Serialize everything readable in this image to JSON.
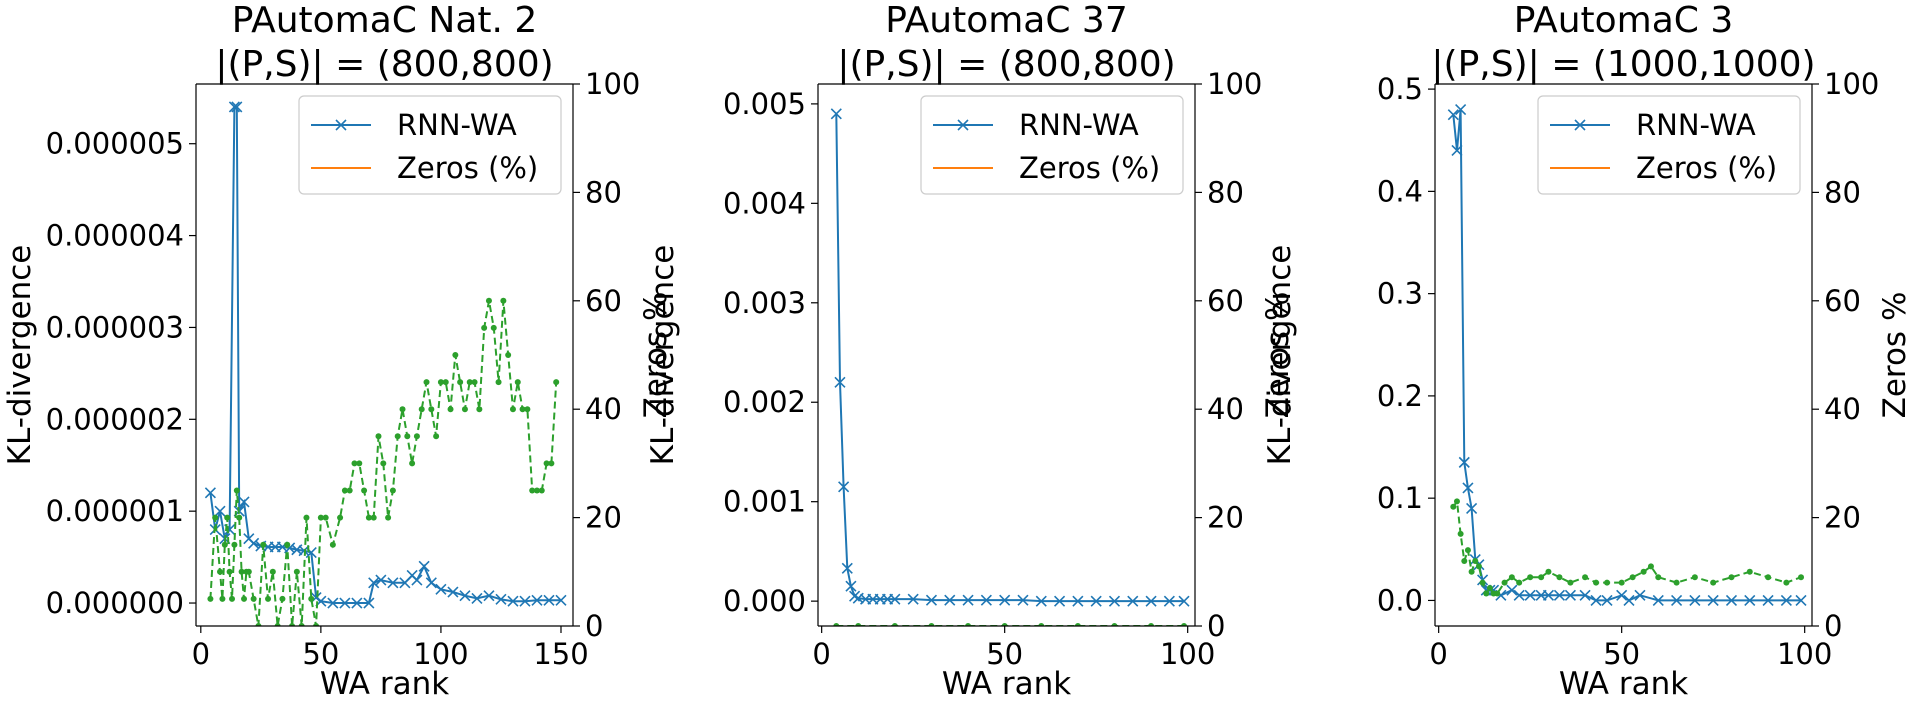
{
  "chart_data": [
    {
      "type": "line",
      "title": "PAutomaC Nat. 2",
      "subtitle": "|(P,S)| = (800,800)",
      "xlabel": "WA rank",
      "ylabel": "KL-divergence",
      "y2label": "Zeros %",
      "xlim": [
        -2,
        155
      ],
      "ylim": [
        -2.5e-07,
        5.65e-06
      ],
      "y2lim": [
        0,
        100
      ],
      "xticks": [
        0,
        50,
        100,
        150
      ],
      "yticks": [
        0.0,
        1e-06,
        2e-06,
        3e-06,
        4e-06,
        5e-06
      ],
      "ytick_labels": [
        "0.000000",
        "0.000001",
        "0.000002",
        "0.000003",
        "0.000004",
        "0.000005"
      ],
      "y2ticks": [
        0,
        20,
        40,
        60,
        80,
        100
      ],
      "y2tick_labels": [
        "0",
        "20",
        "40",
        "60",
        "80",
        "100"
      ],
      "xtick_labels": [
        "0",
        "50",
        "100",
        "150"
      ],
      "grid": false,
      "legend_position": "top-right",
      "legend": [
        {
          "label": "RNN-WA",
          "color": "#1f77b4",
          "marker": "x"
        },
        {
          "label": "Zeros (%)",
          "color": "#ff7f0e",
          "marker": "none"
        }
      ],
      "series": [
        {
          "name": "RNN-WA",
          "axis": "left",
          "color": "#1f77b4",
          "marker": "x",
          "dash": "solid",
          "x": [
            4,
            6,
            8,
            10,
            12,
            14,
            15,
            16,
            18,
            20,
            22,
            25,
            28,
            31,
            34,
            37,
            40,
            43,
            46,
            48,
            50,
            55,
            60,
            65,
            70,
            72,
            75,
            80,
            85,
            88,
            90,
            93,
            96,
            100,
            105,
            110,
            115,
            120,
            125,
            130,
            135,
            140,
            145,
            150
          ],
          "y": [
            1.2e-06,
            8e-07,
            1e-06,
            7e-07,
            8e-07,
            5.4e-06,
            5.4e-06,
            1e-06,
            1.1e-06,
            7e-07,
            6.5e-07,
            6.2e-07,
            6.1e-07,
            6.1e-07,
            6.1e-07,
            6e-07,
            5.8e-07,
            5.7e-07,
            5.5e-07,
            6e-08,
            2e-08,
            0.0,
            0.0,
            0.0,
            0.0,
            2.2e-07,
            2.5e-07,
            2.2e-07,
            2.2e-07,
            3e-07,
            2.5e-07,
            4e-07,
            2.2e-07,
            1.5e-07,
            1.2e-07,
            8e-08,
            5e-08,
            8e-08,
            4e-08,
            2e-08,
            2e-08,
            3e-08,
            3e-08,
            3e-08
          ]
        },
        {
          "name": "",
          "axis": "right",
          "color": "#2ca02c",
          "marker": "dot",
          "dash": "dashed",
          "x": [
            4,
            6,
            8,
            9,
            10,
            11,
            12,
            13,
            14,
            15,
            16,
            17,
            18,
            19,
            20,
            22,
            24,
            26,
            28,
            30,
            32,
            34,
            36,
            38,
            40,
            42,
            44,
            46,
            48,
            50,
            52,
            55,
            58,
            60,
            62,
            64,
            66,
            68,
            70,
            72,
            74,
            76,
            78,
            80,
            82,
            84,
            86,
            88,
            90,
            92,
            94,
            96,
            98,
            100,
            102,
            104,
            106,
            108,
            110,
            112,
            114,
            116,
            118,
            120,
            122,
            124,
            126,
            128,
            130,
            132,
            134,
            136,
            138,
            140,
            142,
            144,
            146,
            148
          ],
          "y": [
            5,
            20,
            10,
            5,
            15,
            20,
            10,
            5,
            15,
            25,
            20,
            10,
            5,
            10,
            10,
            5,
            0,
            15,
            5,
            10,
            0,
            5,
            15,
            0,
            10,
            0,
            20,
            5,
            0,
            20,
            20,
            15,
            20,
            25,
            25,
            30,
            30,
            25,
            20,
            20,
            35,
            30,
            20,
            25,
            35,
            40,
            35,
            30,
            35,
            40,
            45,
            40,
            35,
            45,
            45,
            40,
            50,
            45,
            40,
            45,
            45,
            40,
            55,
            60,
            55,
            45,
            60,
            50,
            40,
            45,
            40,
            40,
            25,
            25,
            25,
            30,
            30,
            45
          ]
        }
      ]
    },
    {
      "type": "line",
      "title": "PAutomaC 37",
      "subtitle": "|(P,S)| = (800,800)",
      "xlabel": "WA rank",
      "ylabel": "KL-divergence",
      "y2label": "Zeros %",
      "xlim": [
        -1,
        102
      ],
      "ylim": [
        -0.00025,
        0.0052
      ],
      "y2lim": [
        0,
        100
      ],
      "xticks": [
        0,
        50,
        100
      ],
      "yticks": [
        0.0,
        0.001,
        0.002,
        0.003,
        0.004,
        0.005
      ],
      "ytick_labels": [
        "0.000",
        "0.001",
        "0.002",
        "0.003",
        "0.004",
        "0.005"
      ],
      "y2ticks": [
        0,
        20,
        40,
        60,
        80,
        100
      ],
      "y2tick_labels": [
        "0",
        "20",
        "40",
        "60",
        "80",
        "100"
      ],
      "xtick_labels": [
        "0",
        "50",
        "100"
      ],
      "grid": false,
      "legend_position": "top-right",
      "legend": [
        {
          "label": "RNN-WA",
          "color": "#1f77b4",
          "marker": "x"
        },
        {
          "label": "Zeros (%)",
          "color": "#ff7f0e",
          "marker": "none"
        }
      ],
      "series": [
        {
          "name": "RNN-WA",
          "axis": "left",
          "color": "#1f77b4",
          "marker": "x",
          "dash": "solid",
          "x": [
            4,
            5,
            6,
            7,
            8,
            9,
            10,
            12,
            14,
            16,
            18,
            20,
            25,
            30,
            35,
            40,
            45,
            50,
            55,
            60,
            65,
            70,
            75,
            80,
            85,
            90,
            95,
            99
          ],
          "y": [
            0.0049,
            0.0022,
            0.00115,
            0.00033,
            0.00015,
            5e-05,
            3e-05,
            2e-05,
            2e-05,
            2e-05,
            2e-05,
            2e-05,
            2e-05,
            1e-05,
            1e-05,
            1e-05,
            1e-05,
            1e-05,
            1e-05,
            0.0,
            0.0,
            0.0,
            0.0,
            0.0,
            0.0,
            0.0,
            0.0,
            0.0
          ]
        },
        {
          "name": "",
          "axis": "right",
          "color": "#2ca02c",
          "marker": "dot",
          "dash": "dashed",
          "x": [
            4,
            10,
            20,
            30,
            40,
            50,
            60,
            70,
            80,
            90,
            99
          ],
          "y": [
            0,
            0,
            0,
            0,
            0,
            0,
            0,
            0,
            0,
            0,
            0
          ]
        }
      ]
    },
    {
      "type": "line",
      "title": "PAutomaC 3",
      "subtitle": "|(P,S)| = (1000,1000)",
      "xlabel": "WA rank",
      "ylabel": "KL-divergence",
      "y2label": "Zeros %",
      "xlim": [
        -1,
        102
      ],
      "ylim": [
        -0.025,
        0.505
      ],
      "y2lim": [
        0,
        100
      ],
      "xticks": [
        0,
        50,
        100
      ],
      "yticks": [
        0.0,
        0.1,
        0.2,
        0.3,
        0.4,
        0.5
      ],
      "ytick_labels": [
        "0.0",
        "0.1",
        "0.2",
        "0.3",
        "0.4",
        "0.5"
      ],
      "y2ticks": [
        0,
        20,
        40,
        60,
        80,
        100
      ],
      "y2tick_labels": [
        "0",
        "20",
        "40",
        "60",
        "80",
        "100"
      ],
      "xtick_labels": [
        "0",
        "50",
        "100"
      ],
      "grid": false,
      "legend_position": "top-right",
      "legend": [
        {
          "label": "RNN-WA",
          "color": "#1f77b4",
          "marker": "x"
        },
        {
          "label": "Zeros (%)",
          "color": "#ff7f0e",
          "marker": "none"
        }
      ],
      "series": [
        {
          "name": "RNN-WA",
          "axis": "left",
          "color": "#1f77b4",
          "marker": "x",
          "dash": "solid",
          "x": [
            4,
            5,
            6,
            7,
            8,
            9,
            10,
            11,
            12,
            13,
            14,
            15,
            17,
            20,
            22,
            25,
            28,
            30,
            33,
            36,
            40,
            43,
            46,
            50,
            52,
            55,
            60,
            65,
            70,
            75,
            80,
            85,
            90,
            95,
            99
          ],
          "y": [
            0.475,
            0.44,
            0.48,
            0.135,
            0.11,
            0.09,
            0.04,
            0.035,
            0.02,
            0.01,
            0.01,
            0.01,
            0.005,
            0.01,
            0.005,
            0.005,
            0.005,
            0.005,
            0.005,
            0.005,
            0.005,
            0.0,
            0.0,
            0.005,
            0.0,
            0.005,
            0.0,
            0.0,
            0.0,
            0.0,
            0.0,
            0.0,
            0.0,
            0.0,
            0.0
          ]
        },
        {
          "name": "",
          "axis": "right",
          "color": "#2ca02c",
          "marker": "dot",
          "dash": "dashed",
          "x": [
            4,
            5,
            6,
            7,
            8,
            9,
            10,
            11,
            12,
            13,
            14,
            15,
            16,
            18,
            20,
            22,
            25,
            28,
            30,
            33,
            36,
            40,
            43,
            46,
            50,
            53,
            56,
            58,
            60,
            65,
            70,
            75,
            80,
            85,
            90,
            95,
            99
          ],
          "y": [
            22,
            23,
            17,
            12,
            14,
            10,
            12,
            11,
            8,
            6,
            7,
            6,
            6,
            8,
            9,
            8,
            9,
            9,
            10,
            9,
            8,
            9,
            8,
            8,
            8,
            9,
            10,
            11,
            9,
            8,
            9,
            8,
            9,
            10,
            9,
            8,
            9
          ]
        }
      ]
    }
  ]
}
